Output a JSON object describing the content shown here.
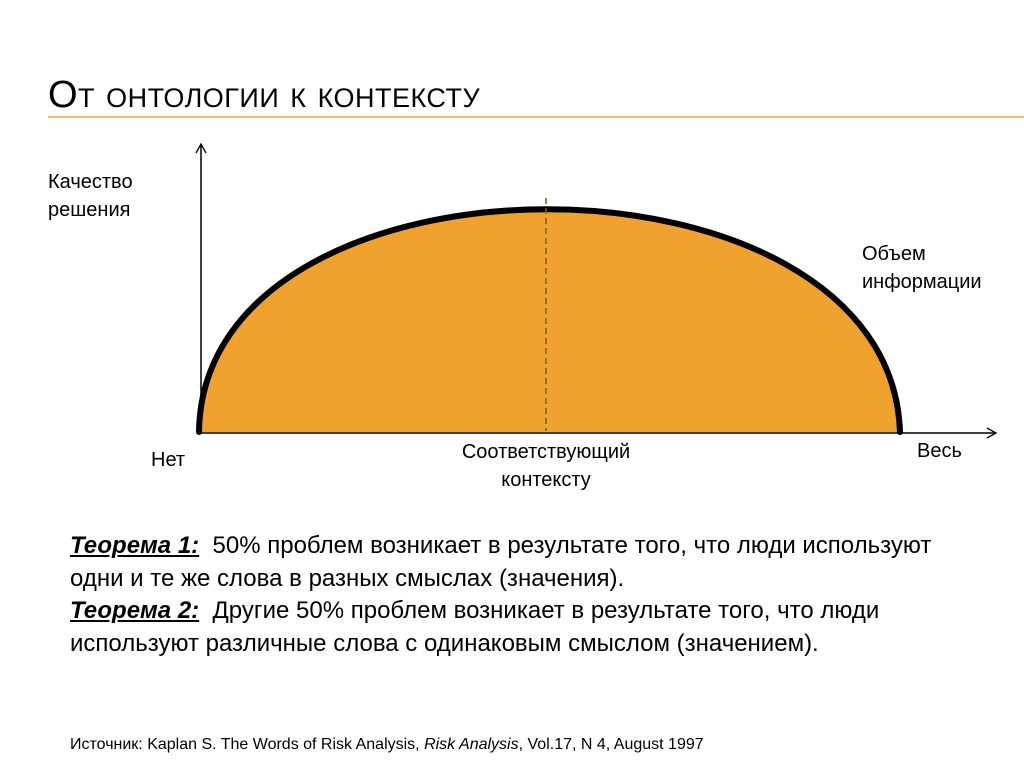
{
  "slide": {
    "title": "От онтологии к контексту"
  },
  "diagram": {
    "y_axis_label": "Качество\nрешения",
    "x_axis_label": "Объем\nинформации",
    "x_left_label": "Нет",
    "x_middle_label": "Соответствующий\nконтексту",
    "x_right_label": "Весь",
    "colors": {
      "fill": "#f0a22f",
      "curve": "#000000",
      "axes": "#000000",
      "dashed_line": "#7a5a26",
      "title_rule": "#e3c76d"
    }
  },
  "theorems": [
    {
      "label": "Теорема 1:",
      "text": "50% проблем возникает в результате того, что люди используют одни и те же слова в разных смыслах (значения)."
    },
    {
      "label": "Теорема 2:",
      "text": "Другие 50% проблем возникает в результате того, что люди используют различные слова с одинаковым смыслом (значением)."
    }
  ],
  "source": {
    "prefix": "Источник: Kaplan S. The Words of Risk Analysis, ",
    "journal": "Risk Analysis",
    "suffix": ", Vol.17, N 4, August 1997"
  }
}
